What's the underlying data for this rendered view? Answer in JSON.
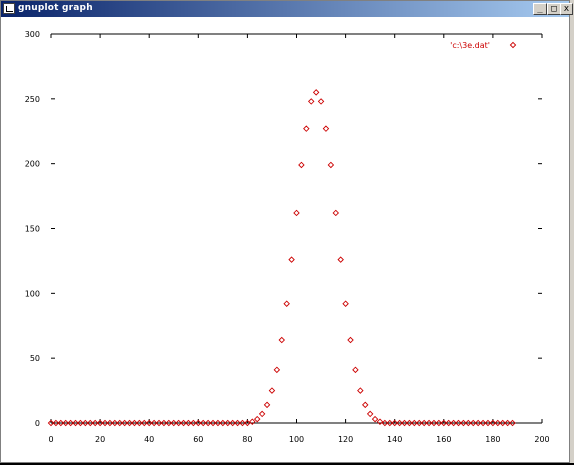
{
  "window": {
    "title": "gnuplot graph",
    "controls": {
      "minimize": "_",
      "maximize": "□",
      "close": "x"
    }
  },
  "icons": {
    "app": "gnuplot-window-icon",
    "minimize": "minimize-icon",
    "maximize": "maximize-icon",
    "close": "close-icon"
  },
  "colors": {
    "titlebar_start": "#0a246a",
    "titlebar_end": "#a6caf0",
    "series": "#cc0000",
    "axis": "#000000"
  },
  "chart_data": {
    "type": "scatter",
    "title": "",
    "xlabel": "",
    "ylabel": "",
    "xlim": [
      0,
      200
    ],
    "ylim": [
      0,
      300
    ],
    "xticks": [
      "0",
      "20",
      "40",
      "60",
      "80",
      "100",
      "120",
      "140",
      "160",
      "180",
      "200"
    ],
    "yticks": [
      "0",
      "50",
      "100",
      "150",
      "200",
      "250",
      "300"
    ],
    "legend_position": "top-right",
    "grid": false,
    "series": [
      {
        "name": "'c:\\3e.dat'",
        "marker": "diamond",
        "color": "#cc0000",
        "x": [
          0,
          2,
          4,
          6,
          8,
          10,
          12,
          14,
          16,
          18,
          20,
          22,
          24,
          26,
          28,
          30,
          32,
          34,
          36,
          38,
          40,
          42,
          44,
          46,
          48,
          50,
          52,
          54,
          56,
          58,
          60,
          62,
          64,
          66,
          68,
          70,
          72,
          74,
          76,
          78,
          80,
          82,
          84,
          86,
          88,
          90,
          92,
          94,
          96,
          98,
          100,
          102,
          104,
          106,
          108,
          110,
          112,
          114,
          116,
          118,
          120,
          122,
          124,
          126,
          128,
          130,
          132,
          134,
          136,
          138,
          140,
          142,
          144,
          146,
          148,
          150,
          152,
          154,
          156,
          158,
          160,
          162,
          164,
          166,
          168,
          170,
          172,
          174,
          176,
          178,
          180,
          182,
          184,
          186,
          188
        ],
        "y": [
          0,
          0,
          0,
          0,
          0,
          0,
          0,
          0,
          0,
          0,
          0,
          0,
          0,
          0,
          0,
          0,
          0,
          0,
          0,
          0,
          0,
          0,
          0,
          0,
          0,
          0,
          0,
          0,
          0,
          0,
          0,
          0,
          0,
          0,
          0,
          0,
          0,
          0,
          0,
          0,
          0,
          1,
          3,
          7,
          14,
          25,
          41,
          64,
          92,
          126,
          162,
          199,
          227,
          248,
          255,
          248,
          227,
          199,
          162,
          126,
          92,
          64,
          41,
          25,
          14,
          7,
          3,
          1,
          0,
          0,
          0,
          0,
          0,
          0,
          0,
          0,
          0,
          0,
          0,
          0,
          0,
          0,
          0,
          0,
          0,
          0,
          0,
          0,
          0,
          0,
          0,
          0,
          0,
          0,
          0
        ]
      }
    ]
  }
}
